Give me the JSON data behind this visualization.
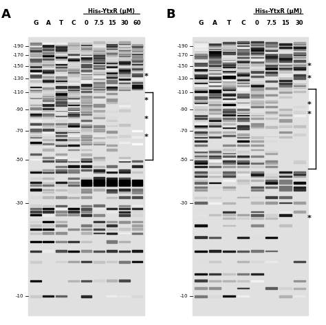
{
  "panel_A": {
    "label": "A",
    "title": "His₆-YtxR (μM)",
    "seq_labels": [
      "G",
      "A",
      "T",
      "C"
    ],
    "conc_labels": [
      "0",
      "7.5",
      "15",
      "30",
      "60"
    ],
    "pos_labels": [
      190,
      170,
      150,
      130,
      110,
      90,
      70,
      50,
      30,
      10
    ],
    "bracket_bp": [
      50,
      110
    ],
    "stars_bp": [
      133,
      100,
      80,
      65
    ],
    "hyperbands_bp": [
      38
    ],
    "seed": 101
  },
  "panel_B": {
    "label": "B",
    "title": "His₆-YtxR (μM)",
    "seq_labels": [
      "G",
      "A",
      "T",
      "C"
    ],
    "conc_labels": [
      "0",
      "7.5",
      "15",
      "30"
    ],
    "pos_labels": [
      190,
      170,
      150,
      130,
      110,
      90,
      70,
      50,
      30,
      10
    ],
    "bracket_bp": [
      45,
      115
    ],
    "stars_bp": [
      150,
      130,
      95,
      85,
      25
    ],
    "hyperbands_bp": [],
    "seed": 202
  }
}
